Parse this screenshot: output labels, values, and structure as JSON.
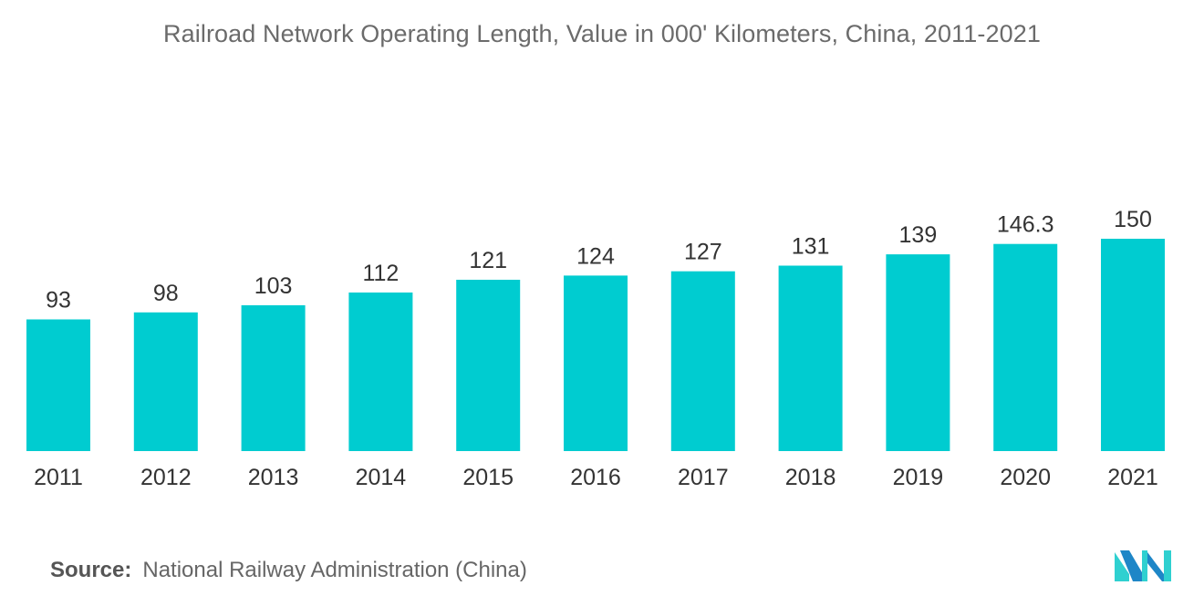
{
  "chart_data": {
    "type": "bar",
    "title": "Railroad Network Operating Length, Value in 000' Kilometers, China, 2011-2021",
    "xlabel": "",
    "ylabel": "",
    "categories": [
      "2011",
      "2012",
      "2013",
      "2014",
      "2015",
      "2016",
      "2017",
      "2018",
      "2019",
      "2020",
      "2021"
    ],
    "values": [
      93,
      98,
      103,
      112,
      121,
      124,
      127,
      131,
      139,
      146.3,
      150
    ],
    "data_labels": [
      "93",
      "98",
      "103",
      "112",
      "121",
      "124",
      "127",
      "131",
      "139",
      "146.3",
      "150"
    ],
    "ylim": [
      0,
      150
    ],
    "grid": false,
    "legend": "none",
    "bar_color": "#00ccd0"
  },
  "source": {
    "label": "Source:",
    "text": "National Railway Administration (China)"
  },
  "logo": {
    "icon": "mordor-intelligence-logo-icon",
    "colors": [
      "#1e86c7",
      "#2fd0d0"
    ]
  }
}
